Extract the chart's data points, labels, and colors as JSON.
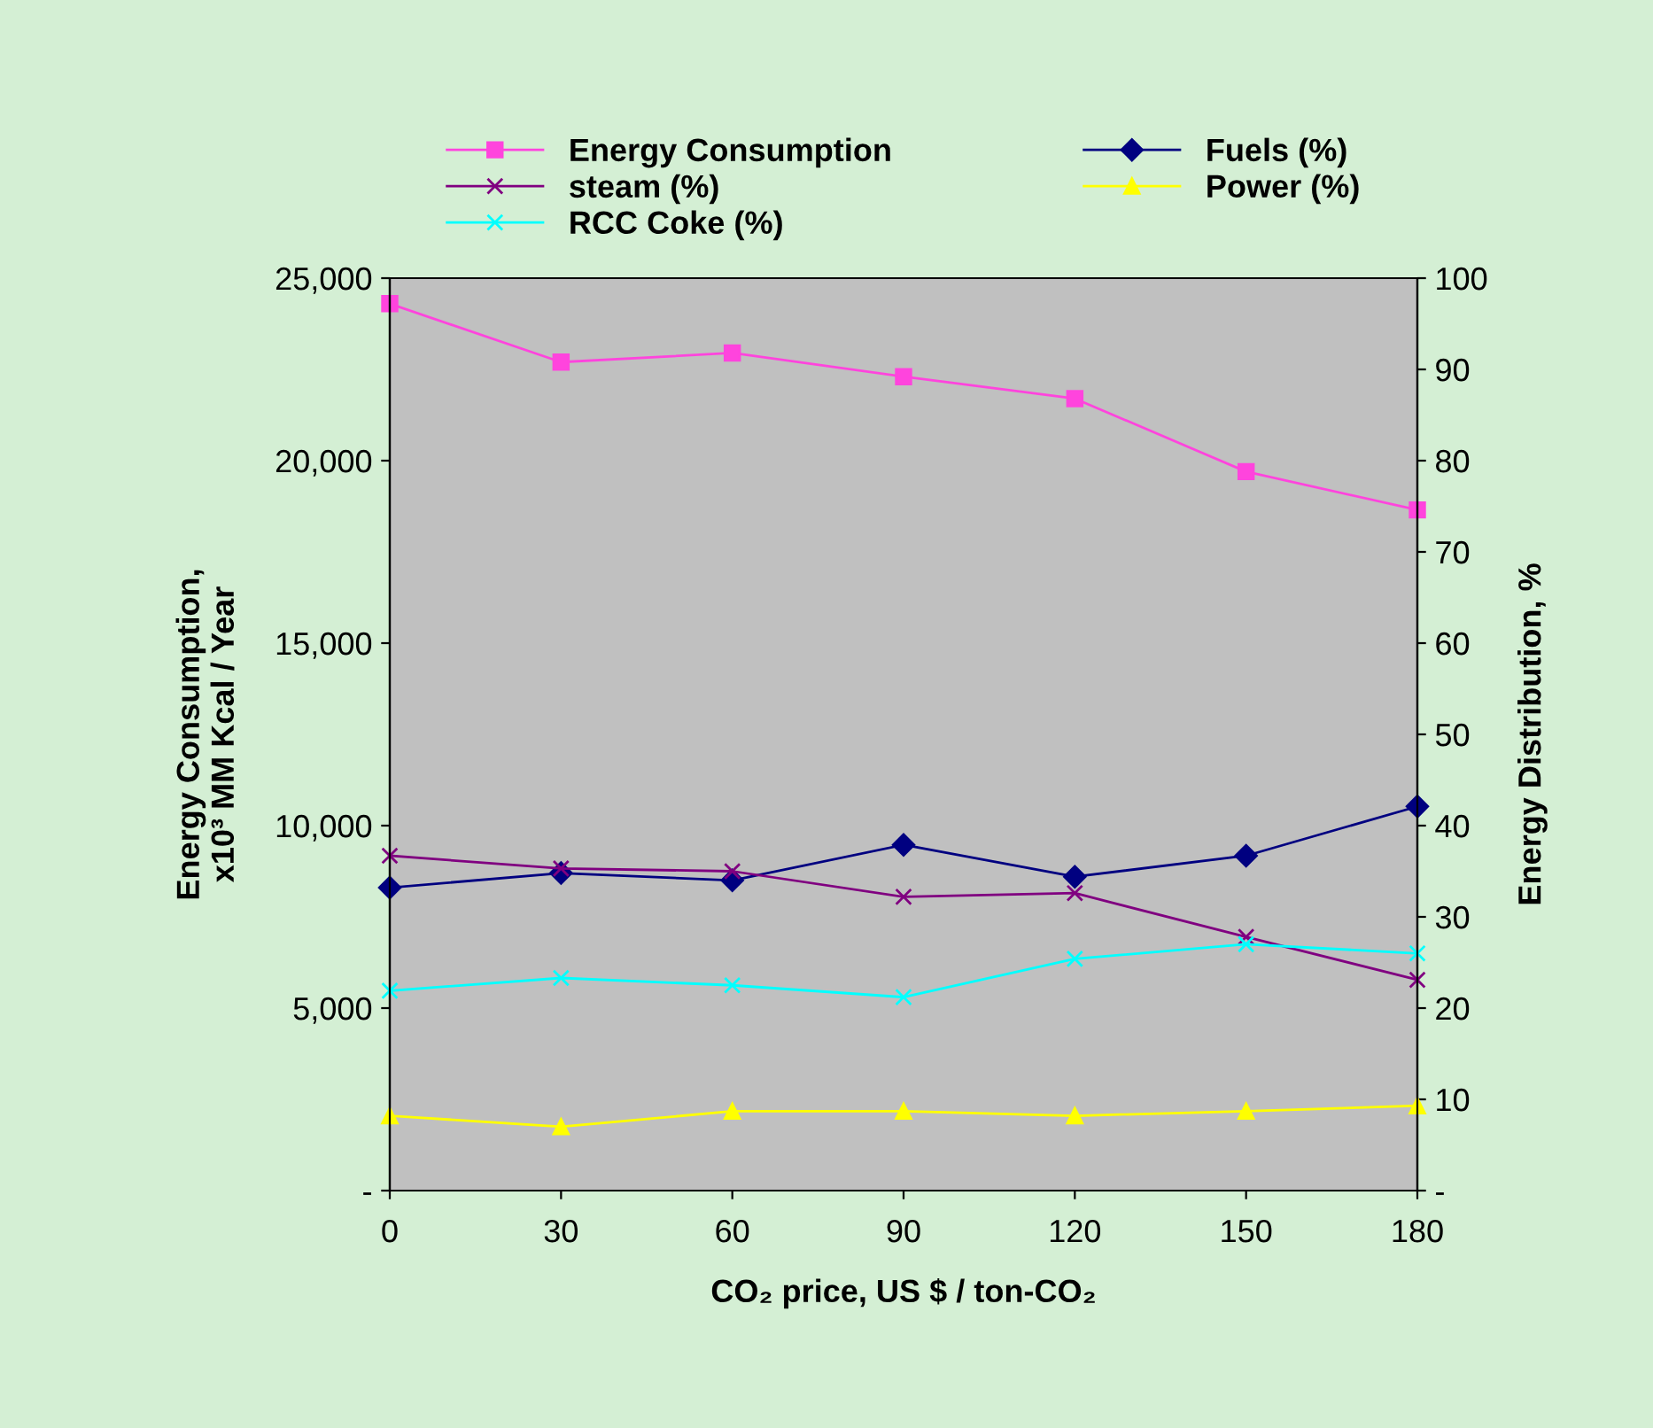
{
  "chart_data": {
    "type": "line",
    "xlabel": "CO₂ price, US $ / ton-CO₂",
    "ylabel": "Energy Consumption,\nx10³ MM Kcal / Year",
    "y2label": "Energy Distribution, %",
    "x": [
      0,
      30,
      60,
      90,
      120,
      150,
      180
    ],
    "xlim": [
      0,
      180
    ],
    "xticks": [
      0,
      30,
      60,
      90,
      120,
      150,
      180
    ],
    "ylim": [
      0,
      25000
    ],
    "yticks": [
      {
        "value": 0,
        "label": "-"
      },
      {
        "value": 5000,
        "label": "5,000"
      },
      {
        "value": 10000,
        "label": "10,000"
      },
      {
        "value": 15000,
        "label": "15,000"
      },
      {
        "value": 20000,
        "label": "20,000"
      },
      {
        "value": 25000,
        "label": "25,000"
      }
    ],
    "y2lim": [
      0,
      100
    ],
    "y2ticks": [
      {
        "value": 0,
        "label": "-"
      },
      10,
      20,
      30,
      40,
      50,
      60,
      70,
      80,
      90,
      100
    ],
    "grid": false,
    "legend": "top",
    "line_style": "solid",
    "series": [
      {
        "name": "Energy Consumption",
        "color": "#ff44dd",
        "marker": "square",
        "values": [
          24300,
          22700,
          22950,
          22300,
          21700,
          19700,
          18650
        ]
      },
      {
        "name": "Fuels (%)",
        "color": "#000080",
        "marker": "diamond",
        "axis": "y2",
        "values": [
          33.2,
          34.8,
          34.0,
          37.9,
          34.4,
          36.7,
          42.1
        ]
      },
      {
        "name": "steam (%)",
        "color": "#800080",
        "marker": "cross",
        "axis": "y2",
        "values": [
          36.7,
          35.3,
          35.0,
          32.2,
          32.6,
          27.8,
          23.1
        ]
      },
      {
        "name": "Power (%)",
        "color": "#ffff00",
        "marker": "triangle",
        "axis": "y2",
        "values": [
          8.2,
          7.0,
          8.7,
          8.7,
          8.2,
          8.7,
          9.3
        ]
      },
      {
        "name": "RCC Coke (%)",
        "color": "#00ffff",
        "marker": "cross",
        "axis": "y2",
        "values": [
          21.9,
          23.3,
          22.5,
          21.2,
          25.4,
          27.0,
          26.0
        ]
      }
    ]
  }
}
